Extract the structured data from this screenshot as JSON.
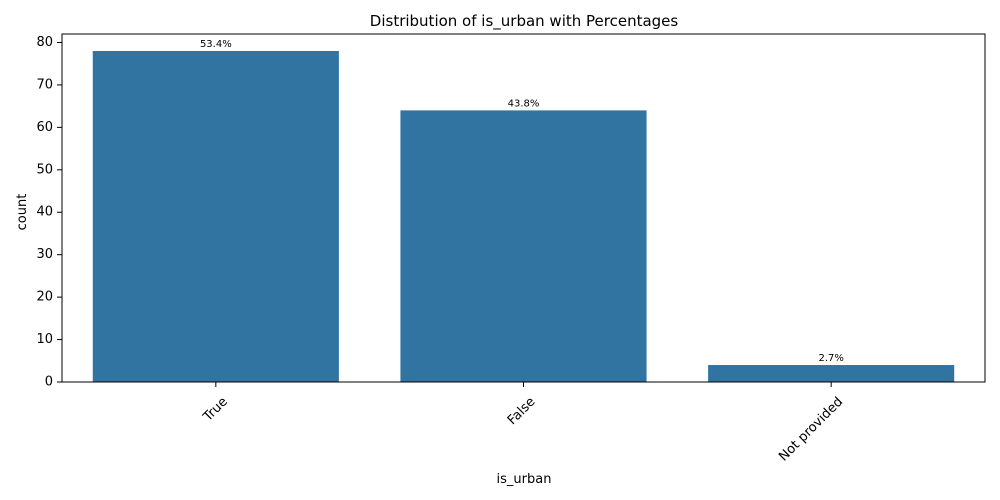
{
  "chart_data": {
    "type": "bar",
    "title": "Distribution of is_urban with Percentages",
    "xlabel": "is_urban",
    "ylabel": "count",
    "categories": [
      "True",
      "False",
      "Not provided"
    ],
    "values": [
      78,
      64,
      4
    ],
    "data_labels": [
      "53.4%",
      "43.8%",
      "2.7%"
    ],
    "yticks": [
      0,
      10,
      20,
      30,
      40,
      50,
      60,
      70,
      80
    ],
    "ylim": [
      0,
      82
    ],
    "bar_color": "#3274a1",
    "grid": false,
    "legend": "none",
    "xtick_rotation_deg": 45
  }
}
